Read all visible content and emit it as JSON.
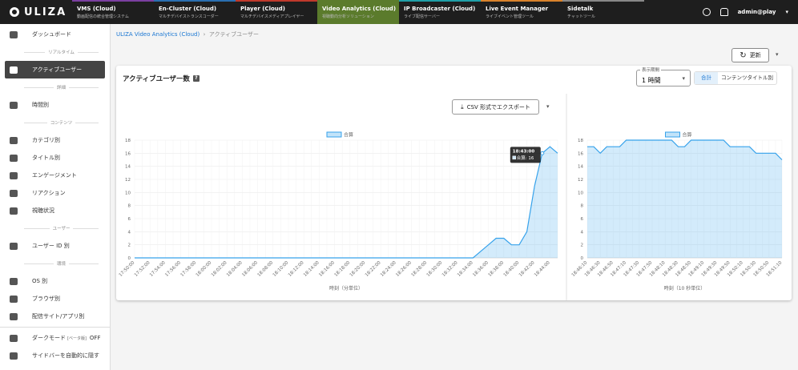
{
  "nav": {
    "logo": "ULIZA",
    "user": "admin@play",
    "tabs": [
      {
        "name": "VMS (Cloud)",
        "sub": "動画配信の統合管理システム"
      },
      {
        "name": "En-Cluster (Cloud)",
        "sub": "マルチデバイストランスコーダー"
      },
      {
        "name": "Player (Cloud)",
        "sub": "マルチデバイスメディアプレイヤー"
      },
      {
        "name": "Video Analytics (Cloud)",
        "sub": "視聴動向分析ソリューション"
      },
      {
        "name": "IP Broadcaster (Cloud)",
        "sub": "ライブ配信サーバー"
      },
      {
        "name": "Live Event Manager",
        "sub": "ライブイベント管理ツール"
      },
      {
        "name": "Sidetalk",
        "sub": "チャットツール"
      }
    ]
  },
  "sidebar": {
    "top": "ダッシュボード",
    "groups": [
      {
        "heading": "リアルタイム",
        "items": [
          "アクティブユーザー"
        ]
      },
      {
        "heading": "詳細",
        "items": [
          "時間別"
        ]
      },
      {
        "heading": "コンテンツ",
        "items": [
          "カテゴリ別",
          "タイトル別",
          "エンゲージメント",
          "リアクション",
          "視聴状況"
        ]
      },
      {
        "heading": "ユーザー",
        "items": [
          "ユーザー ID 別"
        ]
      },
      {
        "heading": "環境",
        "items": [
          "OS 別",
          "ブラウザ別",
          "配信サイト/アプリ別"
        ]
      }
    ],
    "footer": {
      "dark_mode": "ダークモード",
      "beta": "[ベータ版]",
      "state": "OFF",
      "hide": "サイドバーを自動的に隠す"
    }
  },
  "breadcrumb": [
    "ULIZA Video Analytics (Cloud)",
    "アクティブユーザー"
  ],
  "refresh": "更新",
  "card": {
    "title": "アクティブユーザー数",
    "period_label": "表示期間",
    "period": "1 時間",
    "toggle": [
      "合計",
      "コンテンツタイトル別"
    ],
    "export": "CSV 形式でエクスポート"
  },
  "chart_data": [
    {
      "type": "line",
      "x_label": "時刻（分単位）",
      "categories": [
        "17:50:00",
        null,
        "17:52:00",
        null,
        "17:54:00",
        null,
        "17:56:00",
        null,
        "17:58:00",
        null,
        "18:00:00",
        null,
        "18:02:00",
        null,
        "18:04:00",
        null,
        "18:06:00",
        null,
        "18:08:00",
        null,
        "18:10:00",
        null,
        "18:12:00",
        null,
        "18:14:00",
        null,
        "18:16:00",
        null,
        "18:18:00",
        null,
        "18:20:00",
        null,
        "18:22:00",
        null,
        "18:24:00",
        null,
        "18:26:00",
        null,
        "18:28:00",
        null,
        "18:30:00",
        null,
        "18:32:00",
        null,
        "18:34:00",
        null,
        "18:36:00",
        null,
        "18:38:00",
        null,
        "18:40:00",
        null,
        "18:42:00",
        null,
        "18:44:00",
        null
      ],
      "series": [
        {
          "name": "合算",
          "color": "#36a2eb",
          "values": [
            0,
            0,
            0,
            0,
            0,
            0,
            0,
            0,
            0,
            0,
            0,
            0,
            0,
            0,
            0,
            0,
            0,
            0,
            0,
            0,
            0,
            0,
            0,
            0,
            0,
            0,
            0,
            0,
            0,
            0,
            0,
            0,
            0,
            0,
            0,
            0,
            0,
            0,
            0,
            0,
            0,
            0,
            0,
            0,
            0,
            1,
            2,
            3,
            3,
            2,
            2,
            4,
            11,
            16,
            17,
            16
          ]
        }
      ],
      "ylim": [
        0,
        18
      ],
      "yticks": [
        0,
        2,
        4,
        6,
        8,
        10,
        12,
        14,
        16,
        18
      ],
      "grid": true,
      "tooltip": {
        "index": 53,
        "time": "18:43:00",
        "text": "合算: 16"
      }
    },
    {
      "type": "line",
      "x_label": "時刻（10 秒単位）",
      "categories": [
        "18:46:10",
        null,
        "18:46:30",
        null,
        "18:46:50",
        null,
        "18:47:10",
        null,
        "18:47:30",
        null,
        "18:47:50",
        null,
        "18:48:10",
        null,
        "18:48:30",
        null,
        "18:48:50",
        null,
        "18:49:10",
        null,
        "18:49:30",
        null,
        "18:49:50",
        null,
        "18:50:10",
        null,
        "18:50:30",
        null,
        "18:50:50",
        null,
        "18:51:10"
      ],
      "series": [
        {
          "name": "合算",
          "color": "#36a2eb",
          "values": [
            17,
            17,
            16,
            17,
            17,
            17,
            18,
            18,
            18,
            18,
            18,
            18,
            18,
            18,
            17,
            17,
            18,
            18,
            18,
            18,
            18,
            18,
            17,
            17,
            17,
            17,
            16,
            16,
            16,
            16,
            15
          ]
        }
      ],
      "ylim": [
        0,
        18
      ],
      "yticks": [
        0,
        2,
        4,
        6,
        8,
        10,
        12,
        14,
        16,
        18
      ],
      "grid": true
    }
  ]
}
